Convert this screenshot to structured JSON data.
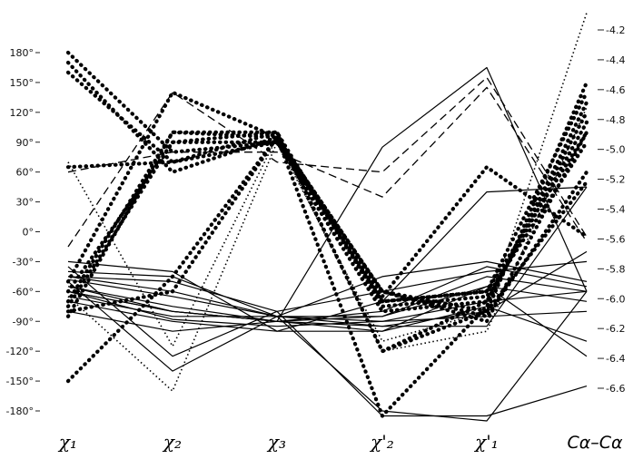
{
  "chart_data": {
    "type": "line",
    "chart_style": "parallel-coordinates",
    "title": "",
    "categories": [
      "χ1",
      "χ2",
      "χ3",
      "χ'2",
      "χ'1",
      "Cα–Cα"
    ],
    "axis_labels": {
      "chi1": "χ₁",
      "chi2": "χ₂",
      "chi3": "χ₃",
      "chi2p": "χ'₂",
      "chi1p": "χ'₁",
      "caca": "Cα–Cα"
    },
    "left_axis": {
      "range": [
        -180,
        180
      ],
      "unit": "°",
      "tick_values": [
        180,
        150,
        120,
        90,
        60,
        30,
        0,
        -30,
        -60,
        -90,
        -120,
        -150,
        -180
      ],
      "tick_labels": [
        "180°",
        "150°",
        "120°",
        "90°",
        "60°",
        "30°",
        "0°",
        "-30°",
        "-60°",
        "-90°",
        "-120°",
        "-150°",
        "-180°"
      ]
    },
    "right_axis": {
      "range": [
        -6.6,
        -4.2
      ],
      "tick_values": [
        -4.2,
        -4.4,
        -4.6,
        -4.8,
        -5.0,
        -5.2,
        -5.4,
        -5.6,
        -5.8,
        -6.0,
        -6.2,
        -6.4,
        -6.6
      ],
      "tick_labels": [
        "-4.2",
        "-4.4",
        "-4.6",
        "-4.8",
        "-5.0",
        "-5.2",
        "-5.4",
        "-5.6",
        "-5.8",
        "-6.0",
        "-6.2",
        "-6.4",
        "-6.6"
      ]
    },
    "grid": false,
    "legend": "none",
    "styles": {
      "solid": {
        "dash": "",
        "width": 1.2
      },
      "dashed": {
        "dash": "9 5",
        "width": 1.3
      },
      "dotted": {
        "dash": "1.5 3",
        "width": 1.6
      },
      "heavy-dotted": {
        "dash": "0.5 6",
        "width": 4.2
      }
    },
    "series": [
      {
        "style": "solid",
        "values": [
          -45,
          -60,
          -85,
          -90,
          -70,
          -60
        ]
      },
      {
        "style": "solid",
        "values": [
          -48,
          -65,
          -85,
          -85,
          -55,
          -70
        ]
      },
      {
        "style": "solid",
        "values": [
          -55,
          -75,
          -90,
          -80,
          -35,
          -55
        ]
      },
      {
        "style": "solid",
        "values": [
          -45,
          -50,
          -80,
          -60,
          -40,
          -30
        ]
      },
      {
        "style": "solid",
        "values": [
          -40,
          -45,
          -85,
          -45,
          -30,
          -50
        ]
      },
      {
        "style": "solid",
        "values": [
          -60,
          -80,
          -90,
          -85,
          -45,
          -60
        ]
      },
      {
        "style": "solid",
        "values": [
          -65,
          -85,
          -85,
          -95,
          -80,
          -20
        ]
      },
      {
        "style": "solid",
        "values": [
          -60,
          -88,
          -95,
          -90,
          -85,
          -80
        ]
      },
      {
        "style": "solid",
        "values": [
          -70,
          -90,
          -100,
          -100,
          -75,
          -110
        ]
      },
      {
        "style": "solid",
        "values": [
          -55,
          -80,
          -90,
          -100,
          -55,
          -125
        ]
      },
      {
        "style": "solid",
        "values": [
          -35,
          -125,
          -80,
          -185,
          -185,
          -155
        ]
      },
      {
        "style": "solid",
        "values": [
          -50,
          -140,
          -85,
          -180,
          -190,
          -60
        ]
      },
      {
        "style": "solid",
        "values": [
          -80,
          -100,
          -90,
          85,
          165,
          -60
        ]
      },
      {
        "style": "solid",
        "values": [
          -30,
          -40,
          -100,
          -70,
          40,
          45
        ]
      },
      {
        "style": "solid",
        "values": [
          -60,
          -80,
          -90,
          -95,
          -95,
          45
        ]
      },
      {
        "style": "dashed",
        "values": [
          -15,
          140,
          70,
          60,
          155,
          -5
        ]
      },
      {
        "style": "dashed",
        "values": [
          60,
          80,
          80,
          35,
          145,
          -10
        ]
      },
      {
        "style": "dotted",
        "values": [
          70,
          -115,
          95,
          -120,
          -100,
          125
        ]
      },
      {
        "style": "dotted",
        "values": [
          -65,
          -160,
          90,
          -110,
          -80,
          220
        ]
      },
      {
        "style": "heavy-dotted",
        "values": [
          180,
          80,
          90,
          -60,
          -80,
          150
        ]
      },
      {
        "style": "heavy-dotted",
        "values": [
          160,
          70,
          100,
          -120,
          -70,
          120
        ]
      },
      {
        "style": "heavy-dotted",
        "values": [
          170,
          60,
          95,
          -70,
          -60,
          140
        ]
      },
      {
        "style": "heavy-dotted",
        "values": [
          65,
          70,
          90,
          -80,
          -70,
          110
        ]
      },
      {
        "style": "heavy-dotted",
        "values": [
          -50,
          140,
          95,
          -60,
          -90,
          100
        ]
      },
      {
        "style": "heavy-dotted",
        "values": [
          -60,
          90,
          100,
          -120,
          -80,
          50
        ]
      },
      {
        "style": "heavy-dotted",
        "values": [
          -70,
          100,
          100,
          -75,
          -65,
          90
        ]
      },
      {
        "style": "heavy-dotted",
        "values": [
          -75,
          90,
          90,
          -70,
          -60,
          100
        ]
      },
      {
        "style": "heavy-dotted",
        "values": [
          -150,
          -45,
          95,
          -185,
          -75,
          130
        ]
      },
      {
        "style": "heavy-dotted",
        "values": [
          -85,
          100,
          95,
          -65,
          65,
          -5
        ]
      },
      {
        "style": "heavy-dotted",
        "values": [
          -80,
          -60,
          95,
          -60,
          -85,
          60
        ]
      }
    ]
  }
}
